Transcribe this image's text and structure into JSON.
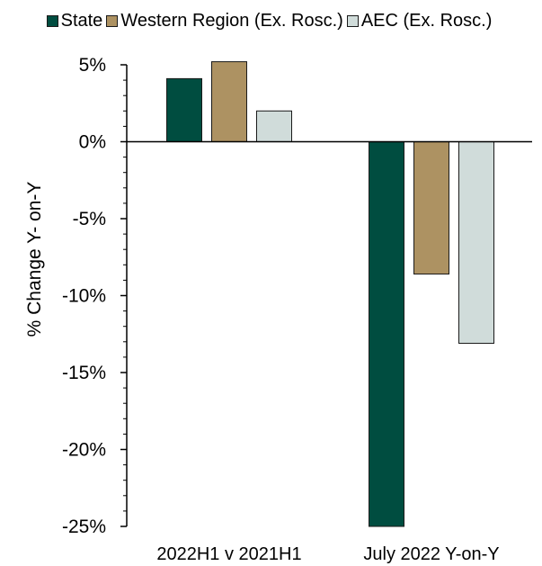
{
  "chart_data": {
    "type": "bar",
    "categories": [
      "2022H1 v 2021H1",
      "July 2022 Y-on-Y"
    ],
    "series": [
      {
        "name": "State",
        "values": [
          4.1,
          -25.0
        ],
        "color": "#004d40"
      },
      {
        "name": "Western Region (Ex. Rosc.)",
        "values": [
          5.2,
          -8.6
        ],
        "color": "#ad9262"
      },
      {
        "name": "AEC (Ex. Rosc.)",
        "values": [
          2.0,
          -13.1
        ],
        "color": "#d0dcda"
      }
    ],
    "ylabel": "% Change Y- on-Y",
    "ylim": [
      -25,
      5
    ],
    "yticks": [
      5,
      0,
      -5,
      -10,
      -15,
      -20,
      -25
    ],
    "ytick_labels": [
      "5%",
      "0%",
      "-5%",
      "-10%",
      "-15%",
      "-20%",
      "-25%"
    ],
    "legend_position": "top",
    "grid": false
  }
}
